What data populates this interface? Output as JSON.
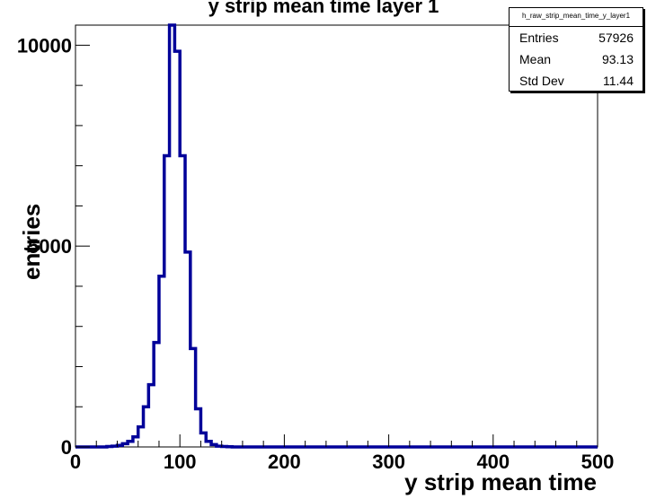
{
  "title": "y strip mean time layer 1",
  "stats": {
    "name": "h_raw_strip_mean_time_y_layer1",
    "rows": [
      {
        "label": "Entries",
        "value": "57926"
      },
      {
        "label": "Mean",
        "value": "93.13"
      },
      {
        "label": "Std Dev",
        "value": "11.44"
      }
    ]
  },
  "chart_data": {
    "type": "line",
    "title": "y strip mean time layer 1",
    "xlabel": "y strip mean time",
    "ylabel": "entries",
    "xlim": [
      0,
      500
    ],
    "ylim": [
      0,
      10500
    ],
    "x_ticks": [
      0,
      100,
      200,
      300,
      400,
      500
    ],
    "y_ticks": [
      0,
      5000,
      10000
    ],
    "bin_width": 5,
    "series": [
      {
        "color": "#000099",
        "bin_edges": [
          0,
          5,
          10,
          15,
          20,
          25,
          30,
          35,
          40,
          45,
          50,
          55,
          60,
          65,
          70,
          75,
          80,
          85,
          90,
          95,
          100,
          105,
          110,
          115,
          120,
          125,
          130,
          135,
          140,
          145,
          150,
          500
        ],
        "values": [
          0,
          0,
          0,
          0,
          0,
          0,
          10,
          20,
          40,
          80,
          140,
          250,
          500,
          1000,
          1550,
          2600,
          4250,
          7250,
          10500,
          9850,
          7250,
          4850,
          2450,
          950,
          350,
          140,
          60,
          20,
          10,
          5,
          0
        ]
      }
    ]
  }
}
